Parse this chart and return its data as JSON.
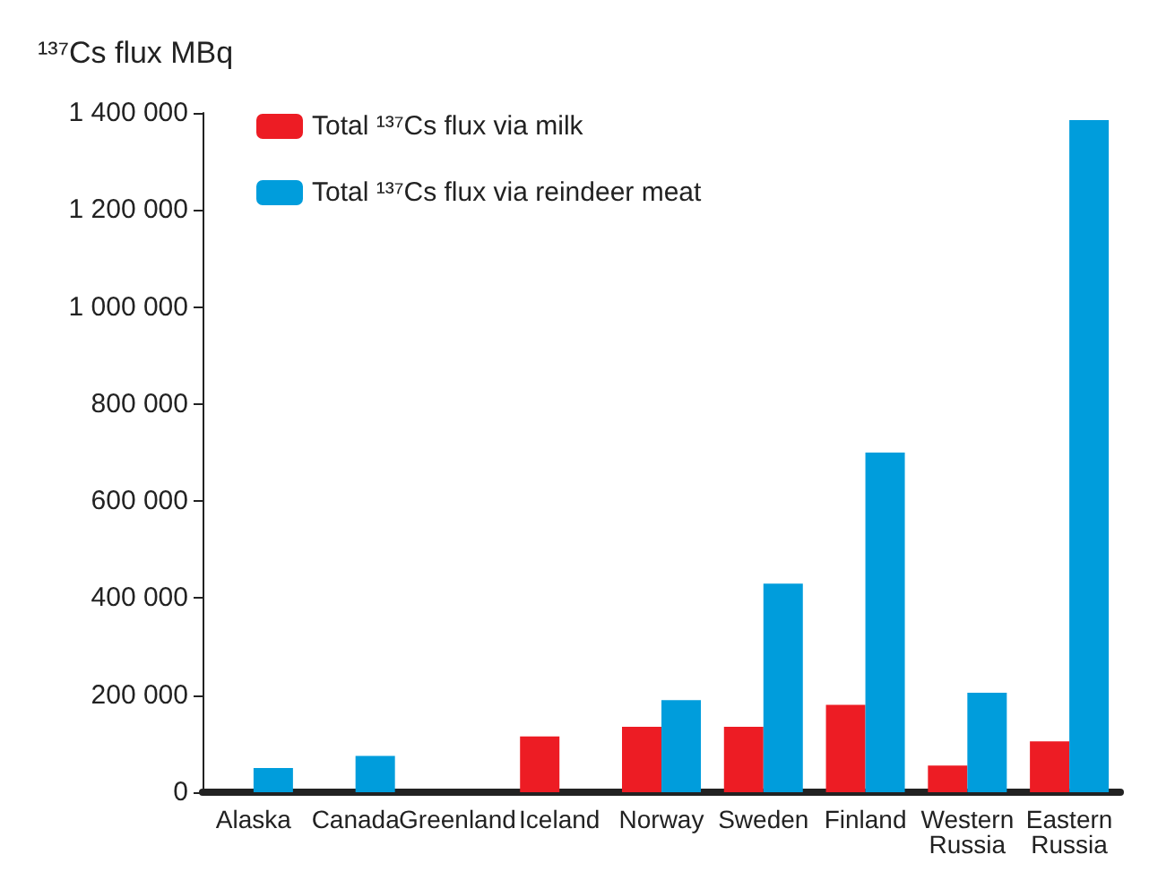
{
  "chart_data": {
    "type": "bar",
    "ylabel": "¹³⁷Cs flux MBq",
    "categories": [
      "Alaska",
      "Canada",
      "Greenland",
      "Iceland",
      "Norway",
      "Sweden",
      "Finland",
      "Western\nRussia",
      "Eastern\nRussia"
    ],
    "series": [
      {
        "name": "Total ¹³⁷Cs flux via milk",
        "color": "#ed1c24",
        "values": [
          0,
          0,
          0,
          115000,
          135000,
          135000,
          180000,
          55000,
          105000
        ]
      },
      {
        "name": "Total ¹³⁷Cs flux via reindeer meat",
        "color": "#009ddc",
        "values": [
          50000,
          75000,
          0,
          0,
          190000,
          430000,
          700000,
          205000,
          1385000
        ]
      }
    ],
    "ylim": [
      0,
      1400000
    ],
    "yticks": [
      0,
      {
        "value": 200000,
        "label": "200 000"
      },
      {
        "value": 400000,
        "label": "400 000"
      },
      {
        "value": 600000,
        "label": "600 000"
      },
      {
        "value": 800000,
        "label": "800 000"
      },
      {
        "value": 1000000,
        "label": "1 000 000"
      },
      {
        "value": 1200000,
        "label": "1 200 000"
      },
      {
        "value": 1400000,
        "label": "1 400 000"
      }
    ],
    "grid": false,
    "legend": "top left"
  }
}
